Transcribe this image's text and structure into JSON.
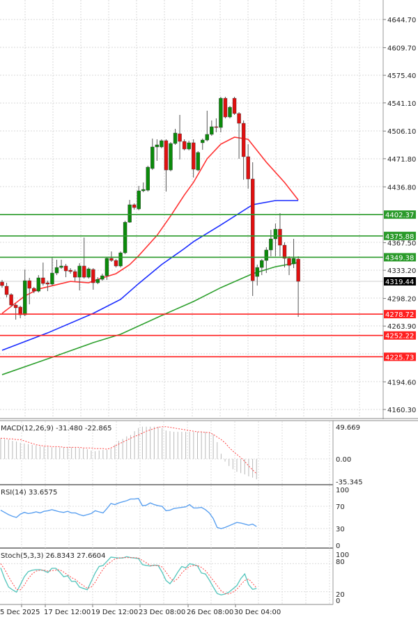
{
  "colors": {
    "bull": "#0a8a0a",
    "bear": "#e01010",
    "wick": "#555555",
    "ma_fast": "#ff3333",
    "ma_mid": "#1a2cff",
    "ma_slow": "#2ea02e",
    "support": "#ff2020",
    "resistance": "#2a9a2a",
    "current": "#000000",
    "rsi": "#5aa0f0",
    "stoch_k": "#5cc8bf",
    "stoch_d": "#ff4444",
    "macd_hist": "#b8b8b8",
    "macd_signal": "#ff4444"
  },
  "chart_data": [
    {
      "type": "candlestick",
      "ylim": [
        4160.3,
        4644.7
      ],
      "grid": true,
      "y_ticks": [
        "4644.70",
        "4609.70",
        "4575.40",
        "4541.10",
        "4506.10",
        "4471.80",
        "4436.80",
        "4367.50",
        "4333.20",
        "4298.20",
        "4263.90",
        "4194.60",
        "4160.30"
      ],
      "current_price": "4319.44",
      "levels": [
        {
          "value": "4402.37",
          "kind": "resistance"
        },
        {
          "value": "4375.88",
          "kind": "resistance"
        },
        {
          "value": "4349.38",
          "kind": "resistance"
        },
        {
          "value": "4278.72",
          "kind": "support"
        },
        {
          "value": "4252.22",
          "kind": "support"
        },
        {
          "value": "4225.73",
          "kind": "support"
        }
      ],
      "candles": [
        [
          4318.6,
          4321.2,
          4311.6,
          4314.2
        ],
        [
          4313.4,
          4317.7,
          4299.6,
          4303.0
        ],
        [
          4303.0,
          4304.7,
          4288.3,
          4290.0
        ],
        [
          4290.0,
          4291.8,
          4271.9,
          4286.6
        ],
        [
          4287.5,
          4289.2,
          4273.6,
          4277.9
        ],
        [
          4277.9,
          4334.2,
          4276.2,
          4320.3
        ],
        [
          4320.3,
          4323.8,
          4290.9,
          4310.8
        ],
        [
          4310.8,
          4312.5,
          4304.7,
          4307.3
        ],
        [
          4307.3,
          4327.2,
          4305.6,
          4323.8
        ],
        [
          4323.8,
          4342.8,
          4314.2,
          4316.8
        ],
        [
          4317.7,
          4320.3,
          4307.3,
          4316.0
        ],
        [
          4316.0,
          4348.9,
          4314.2,
          4329.8
        ],
        [
          4329.8,
          4346.3,
          4327.2,
          4336.7
        ],
        [
          4336.7,
          4346.3,
          4335.0,
          4338.5
        ],
        [
          4338.5,
          4341.1,
          4324.6,
          4332.4
        ],
        [
          4333.3,
          4335.9,
          4329.0,
          4331.6
        ],
        [
          4331.6,
          4334.2,
          4319.5,
          4324.6
        ],
        [
          4324.6,
          4342.0,
          4308.2,
          4338.5
        ],
        [
          4338.5,
          4373.9,
          4322.9,
          4324.6
        ],
        [
          4324.6,
          4336.7,
          4322.9,
          4335.0
        ],
        [
          4334.2,
          4335.9,
          4309.1,
          4317.7
        ],
        [
          4317.7,
          4324.6,
          4316.0,
          4322.0
        ],
        [
          4322.0,
          4329.0,
          4320.3,
          4326.4
        ],
        [
          4326.4,
          4349.7,
          4321.2,
          4348.0
        ],
        [
          4348.0,
          4356.6,
          4343.7,
          4345.4
        ],
        [
          4345.4,
          4347.1,
          4336.7,
          4338.5
        ],
        [
          4338.5,
          4356.6,
          4336.7,
          4354.9
        ],
        [
          4354.9,
          4394.7,
          4353.2,
          4392.9
        ],
        [
          4392.9,
          4420.6,
          4392.1,
          4414.6
        ],
        [
          4414.6,
          4416.3,
          4408.5,
          4411.1
        ],
        [
          4409.4,
          4438.0,
          4407.7,
          4431.9
        ],
        [
          4431.9,
          4442.3,
          4430.2,
          4433.6
        ],
        [
          4432.7,
          4463.0,
          4431.0,
          4461.3
        ],
        [
          4459.6,
          4496.8,
          4457.8,
          4486.4
        ],
        [
          4486.4,
          4495.9,
          4469.1,
          4489.0
        ],
        [
          4486.4,
          4495.9,
          4484.7,
          4494.2
        ],
        [
          4494.2,
          4495.9,
          4431.0,
          4457.8
        ],
        [
          4457.8,
          4492.4,
          4456.1,
          4490.7
        ],
        [
          4490.7,
          4508.9,
          4489.0,
          4503.7
        ],
        [
          4502.8,
          4526.2,
          4470.8,
          4493.3
        ],
        [
          4493.3,
          4495.9,
          4482.1,
          4483.8
        ],
        [
          4483.8,
          4494.2,
          4482.1,
          4491.6
        ],
        [
          4491.6,
          4495.9,
          4448.3,
          4458.7
        ],
        [
          4457.8,
          4481.2,
          4456.1,
          4479.5
        ],
        [
          4491.6,
          4496.8,
          4482.9,
          4495.0
        ],
        [
          4495.0,
          4531.4,
          4493.3,
          4502.0
        ],
        [
          4502.0,
          4519.3,
          4500.2,
          4511.5
        ],
        [
          4511.5,
          4521.9,
          4504.6,
          4510.6
        ],
        [
          4510.6,
          4548.7,
          4504.6,
          4546.9
        ],
        [
          4546.9,
          4548.7,
          4521.9,
          4523.6
        ],
        [
          4523.6,
          4537.4,
          4521.9,
          4535.7
        ],
        [
          4546.9,
          4548.7,
          4526.2,
          4527.9
        ],
        [
          4527.9,
          4529.6,
          4471.7,
          4515.8
        ],
        [
          4515.8,
          4519.3,
          4445.7,
          4474.3
        ],
        [
          4474.3,
          4489.8,
          4434.5,
          4446.6
        ],
        [
          4446.6,
          4467.4,
          4301.3,
          4320.3
        ],
        [
          4325.5,
          4340.2,
          4314.2,
          4336.7
        ],
        [
          4336.7,
          4347.1,
          4327.2,
          4345.4
        ],
        [
          4345.4,
          4361.8,
          4329.8,
          4358.4
        ],
        [
          4358.4,
          4383.4,
          4350.6,
          4372.2
        ],
        [
          4372.2,
          4391.2,
          4350.6,
          4384.3
        ],
        [
          4384.3,
          4404.2,
          4350.6,
          4364.4
        ],
        [
          4364.4,
          4367.9,
          4336.7,
          4348.0
        ],
        [
          4348.0,
          4350.6,
          4327.2,
          4339.3
        ],
        [
          4341.1,
          4372.2,
          4335.9,
          4348.0
        ],
        [
          4347.1,
          4350.6,
          4275.3,
          4319.44
        ]
      ],
      "moving_averages": [
        {
          "color_key": "ma_fast",
          "points": [
            [
              0,
              4279.7
            ],
            [
              5,
              4301.3
            ],
            [
              8,
              4309.9
            ],
            [
              15,
              4319.4
            ],
            [
              19,
              4317.7
            ],
            [
              22,
              4323.8
            ],
            [
              25,
              4329.0
            ],
            [
              28,
              4340.2
            ],
            [
              30,
              4351.4
            ],
            [
              34,
              4376.5
            ],
            [
              37,
              4400.7
            ],
            [
              40,
              4426.7
            ],
            [
              42,
              4442.3
            ],
            [
              45,
              4471.7
            ],
            [
              48,
              4489.8
            ],
            [
              51,
              4498.5
            ],
            [
              54,
              4495.9
            ],
            [
              58,
              4467.4
            ],
            [
              62,
              4442.3
            ],
            [
              65,
              4420.6
            ]
          ]
        },
        {
          "color_key": "ma_mid",
          "points": [
            [
              0,
              4233.8
            ],
            [
              10,
              4255.4
            ],
            [
              20,
              4279.7
            ],
            [
              26,
              4297.0
            ],
            [
              30,
              4316.8
            ],
            [
              35,
              4340.2
            ],
            [
              40,
              4360.1
            ],
            [
              42,
              4368.7
            ],
            [
              48,
              4389.5
            ],
            [
              55,
              4414.6
            ],
            [
              60,
              4419.8
            ],
            [
              65,
              4419.8
            ]
          ]
        },
        {
          "color_key": "ma_slow",
          "points": [
            [
              0,
              4203.5
            ],
            [
              11,
              4225.2
            ],
            [
              20,
              4243.3
            ],
            [
              26,
              4253.7
            ],
            [
              35,
              4277.0
            ],
            [
              42,
              4294.4
            ],
            [
              48,
              4311.6
            ],
            [
              55,
              4329.0
            ],
            [
              60,
              4337.6
            ],
            [
              65,
              4342.8
            ]
          ]
        }
      ]
    },
    {
      "type": "bar",
      "label": "MACD(12,26,9) -31.480 -22.865",
      "y_ticks": [
        "49.669",
        "0.00",
        "-35.345"
      ],
      "histogram": [
        32,
        31,
        30,
        28,
        27,
        25,
        24,
        23,
        22,
        21,
        20,
        19,
        19,
        18,
        18,
        18,
        18,
        18,
        18,
        18,
        17,
        16,
        15,
        13,
        12,
        13,
        14,
        14,
        16,
        22,
        28,
        31,
        35,
        37,
        43,
        48,
        50,
        50,
        50,
        50,
        50,
        48,
        44,
        43,
        42,
        42,
        42,
        42,
        42,
        42,
        42,
        42,
        42,
        41,
        38,
        26,
        8,
        -4,
        -11,
        -16,
        -20,
        -22,
        -24,
        -27,
        -29,
        -31.48
      ],
      "signal": [
        32,
        32,
        31,
        31,
        30,
        30,
        28,
        26,
        24,
        22,
        21,
        20,
        20,
        19,
        19,
        19,
        18,
        18,
        18,
        18,
        18,
        17,
        17,
        17,
        16,
        16,
        16,
        15,
        17,
        20,
        23,
        26,
        29,
        32,
        35,
        37,
        40,
        43,
        45,
        47,
        49,
        50,
        50,
        49,
        48,
        47,
        46,
        45,
        44,
        43,
        42,
        42,
        41,
        41,
        38,
        34,
        30,
        25,
        18,
        12,
        7,
        2,
        -4,
        -11,
        -17,
        -22.865
      ]
    },
    {
      "type": "line",
      "label": "RSI(14) 33.6575",
      "y_ticks": [
        "100",
        "70",
        "30",
        "0"
      ],
      "values": [
        63,
        59,
        55,
        52,
        50,
        56,
        59,
        57,
        58,
        60,
        58,
        61,
        62,
        64,
        62,
        60,
        59,
        61,
        58,
        58,
        55,
        53,
        55,
        57,
        62,
        60,
        58,
        66,
        75,
        73,
        76,
        78,
        80,
        83,
        83,
        84,
        71,
        72,
        76,
        73,
        71,
        70,
        62,
        63,
        66,
        67,
        68,
        69,
        73,
        67,
        67,
        68,
        64,
        58,
        48,
        32,
        30,
        32,
        35,
        38,
        41,
        40,
        38,
        36,
        38,
        33.6575
      ]
    },
    {
      "type": "line",
      "label": "Stoch(5,3,3) 26.8343 27.6604",
      "y_ticks": [
        "100",
        "80",
        "20",
        "0"
      ],
      "k": [
        71,
        48,
        30,
        24,
        19,
        35,
        52,
        63,
        66,
        67,
        67,
        65,
        61,
        70,
        70,
        62,
        52,
        54,
        42,
        42,
        30,
        27,
        24,
        42,
        60,
        74,
        76,
        85,
        94,
        93,
        92,
        92,
        95,
        93,
        92,
        91,
        78,
        76,
        75,
        77,
        76,
        62,
        44,
        37,
        48,
        62,
        74,
        71,
        80,
        78,
        75,
        60,
        58,
        45,
        30,
        16,
        13,
        15,
        19,
        26,
        33,
        48,
        58,
        35,
        25,
        26.8343
      ],
      "d": [
        80,
        68,
        52,
        38,
        25,
        24,
        34,
        48,
        58,
        64,
        66,
        66,
        64,
        65,
        66,
        67,
        62,
        56,
        50,
        46,
        39,
        33,
        27,
        30,
        40,
        55,
        68,
        78,
        84,
        90,
        92,
        93,
        93,
        93,
        93,
        92,
        87,
        82,
        76,
        76,
        76,
        73,
        62,
        50,
        42,
        48,
        60,
        68,
        74,
        76,
        76,
        72,
        65,
        55,
        44,
        33,
        22,
        16,
        15,
        19,
        25,
        35,
        44,
        47,
        38,
        27.6604
      ]
    }
  ],
  "x_axis": {
    "labels": [
      "5 Dec 2025",
      "17 Dec 12:00",
      "19 Dec 12:00",
      "23 Dec 08:00",
      "26 Dec 08:00",
      "30 Dec 04:00"
    ]
  }
}
